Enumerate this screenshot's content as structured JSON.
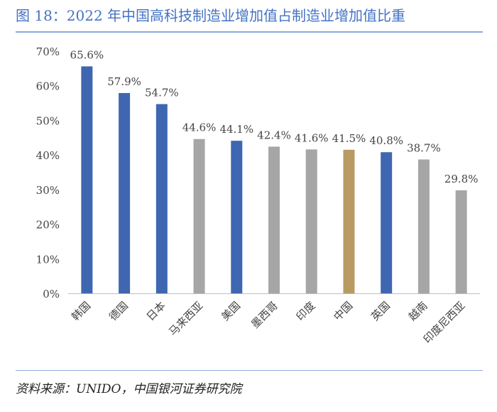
{
  "title": "图 18：2022 年中国高科技制造业增加值占制造业增加值比重",
  "source": "资料来源：UNIDO，中国银河证券研究院",
  "colors": {
    "blue": "#3f67b1",
    "gray": "#a6a6a6",
    "gold": "#b99a63",
    "title": "#4472c4"
  },
  "chart_data": {
    "type": "bar",
    "title": "图 18：2022 年中国高科技制造业增加值占制造业增加值比重",
    "xlabel": "",
    "ylabel": "",
    "ylim": [
      0,
      70
    ],
    "yticks": [
      "0%",
      "10%",
      "20%",
      "30%",
      "40%",
      "50%",
      "60%",
      "70%"
    ],
    "grid": false,
    "categories": [
      "韩国",
      "德国",
      "日本",
      "马来西亚",
      "美国",
      "墨西哥",
      "印度",
      "中国",
      "英国",
      "越南",
      "印度尼西亚"
    ],
    "values": [
      65.6,
      57.9,
      54.7,
      44.6,
      44.1,
      42.4,
      41.6,
      41.5,
      40.8,
      38.7,
      29.8
    ],
    "labels": [
      "65.6%",
      "57.9%",
      "54.7%",
      "44.6%",
      "44.1%",
      "42.4%",
      "41.6%",
      "41.5%",
      "40.8%",
      "38.7%",
      "29.8%"
    ],
    "bar_colors": [
      "blue",
      "blue",
      "blue",
      "gray",
      "blue",
      "gray",
      "gray",
      "gold",
      "blue",
      "gray",
      "gray"
    ]
  }
}
